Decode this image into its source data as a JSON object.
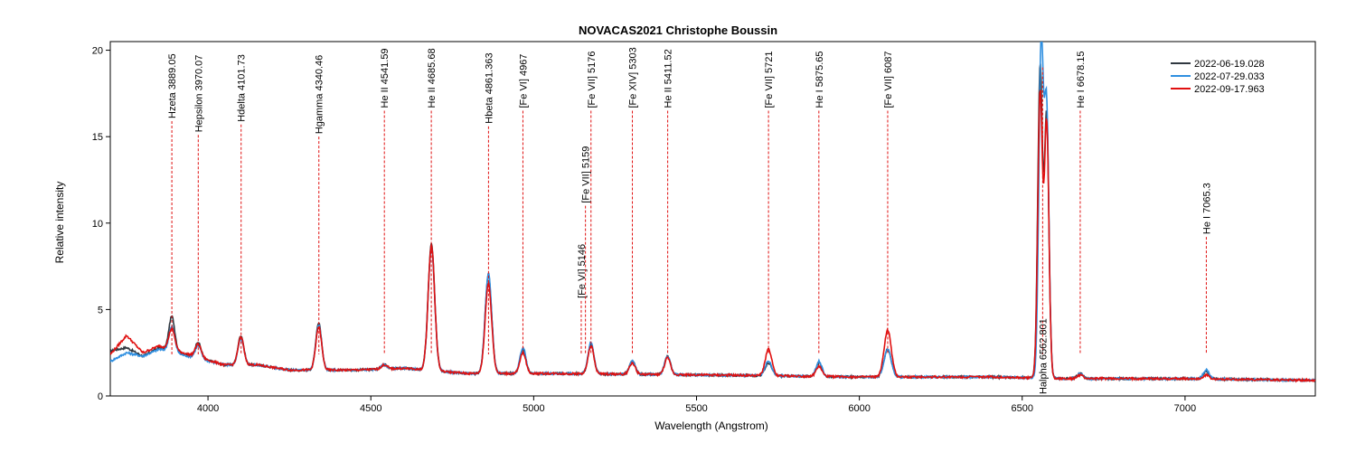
{
  "chart_data": {
    "type": "line",
    "title": "NOVACAS2021   Christophe Boussin",
    "xlabel": "Wavelength (Angstrom)",
    "ylabel": "Relative intensity",
    "xlim": [
      3700,
      7400
    ],
    "ylim": [
      0,
      20.5
    ],
    "x_ticks": [
      4000,
      4500,
      5000,
      5500,
      6000,
      6500,
      7000
    ],
    "y_ticks": [
      0,
      5,
      10,
      15,
      20
    ],
    "grid": false,
    "legend_position": "top-right",
    "series": [
      {
        "name": "2022-06-19.028",
        "color": "#303840",
        "peaks": {
          "3889": 4.6,
          "3970": 3.1,
          "4101": 3.5,
          "4340": 4.2,
          "4541": 1.8,
          "4686": 8.8,
          "4861": 7.0,
          "4967": 2.7,
          "5176": 3.0,
          "5303": 2.0,
          "5411": 2.3,
          "5721": 1.9,
          "5876": 1.9,
          "6087": 2.7,
          "6555": 19.0,
          "6575": 16.2,
          "6678": 1.3,
          "7065": 1.4
        },
        "base": {
          "3700": 2.6,
          "3750": 2.8,
          "3800": 2.3,
          "3850": 2.8,
          "4050": 1.8,
          "4150": 1.8,
          "4250": 1.5,
          "4450": 1.5,
          "4600": 1.6,
          "4800": 1.3,
          "5050": 1.3,
          "5600": 1.2,
          "6000": 1.1,
          "6400": 1.1,
          "6650": 1.0,
          "7000": 1.0,
          "7400": 0.9
        }
      },
      {
        "name": "2022-07-29.033",
        "color": "#2f8fe0",
        "peaks": {
          "3889": 4.0,
          "3970": 2.9,
          "4101": 3.3,
          "4340": 4.1,
          "4541": 1.8,
          "4686": 8.6,
          "4861": 7.1,
          "4967": 2.8,
          "5176": 3.1,
          "5303": 2.0,
          "5411": 2.3,
          "5721": 2.0,
          "5876": 2.0,
          "6087": 2.7,
          "6558": 20.1,
          "6575": 16.5,
          "6678": 1.3,
          "7065": 1.5
        },
        "base": {
          "3700": 2.0,
          "3750": 2.5,
          "3800": 2.3,
          "3850": 2.7,
          "4050": 1.8,
          "4150": 1.8,
          "4250": 1.5,
          "4450": 1.5,
          "4600": 1.6,
          "4800": 1.3,
          "5050": 1.3,
          "5600": 1.2,
          "6000": 1.1,
          "6400": 1.1,
          "6650": 1.0,
          "7000": 1.0,
          "7400": 0.9
        }
      },
      {
        "name": "2022-09-17.963",
        "color": "#e01010",
        "peaks": {
          "3889": 3.9,
          "3970": 3.0,
          "4101": 3.4,
          "4340": 4.0,
          "4541": 1.8,
          "4686": 8.7,
          "4861": 6.5,
          "4967": 2.5,
          "5176": 2.9,
          "5303": 1.9,
          "5411": 2.2,
          "5721": 2.7,
          "5876": 1.7,
          "6087": 3.8,
          "6555": 17.5,
          "6575": 15.8,
          "6678": 1.2,
          "7065": 1.2
        },
        "base": {
          "3700": 2.4,
          "3750": 3.5,
          "3800": 2.5,
          "3850": 2.9,
          "4050": 1.8,
          "4150": 1.8,
          "4250": 1.5,
          "4450": 1.5,
          "4600": 1.6,
          "4800": 1.3,
          "5050": 1.3,
          "5600": 1.2,
          "6000": 1.1,
          "6400": 1.1,
          "6650": 1.0,
          "7000": 1.0,
          "7400": 0.9
        }
      }
    ],
    "annotations": [
      {
        "label": "Hzeta 3889.05",
        "x": 3889.05,
        "top": 15.9,
        "text_at": "top"
      },
      {
        "label": "Hepsilon 3970.07",
        "x": 3970.07,
        "top": 15.1,
        "text_at": "top"
      },
      {
        "label": "Hdelta 4101.73",
        "x": 4101.73,
        "top": 15.7,
        "text_at": "top"
      },
      {
        "label": "Hgamma 4340.46",
        "x": 4340.46,
        "top": 15.0,
        "text_at": "top"
      },
      {
        "label": "He II 4541.59",
        "x": 4541.59,
        "top": 16.5,
        "text_at": "top"
      },
      {
        "label": "He II 4685.68",
        "x": 4685.68,
        "top": 16.5,
        "text_at": "top"
      },
      {
        "label": "Hbeta 4861.363",
        "x": 4861.363,
        "top": 15.6,
        "text_at": "top"
      },
      {
        "label": "[Fe VI] 4967",
        "x": 4967,
        "top": 16.5,
        "text_at": "top"
      },
      {
        "label": "[Fe VI] 5146",
        "x": 5146,
        "top": 5.5,
        "text_at": "top"
      },
      {
        "label": "[Fe VII] 5159",
        "x": 5159,
        "top": 11.0,
        "text_at": "top"
      },
      {
        "label": "[Fe VII] 5176",
        "x": 5176,
        "top": 16.5,
        "text_at": "top"
      },
      {
        "label": "[Fe XIV] 5303",
        "x": 5303,
        "top": 16.5,
        "text_at": "top"
      },
      {
        "label": "He II 5411.52",
        "x": 5411.52,
        "top": 16.5,
        "text_at": "top"
      },
      {
        "label": "[Fe VII] 5721",
        "x": 5721,
        "top": 16.5,
        "text_at": "top"
      },
      {
        "label": "He I 5875.65",
        "x": 5875.65,
        "top": 16.5,
        "text_at": "top"
      },
      {
        "label": "[Fe VII] 6087",
        "x": 6087,
        "top": 16.5,
        "text_at": "top"
      },
      {
        "label": "Halpha 6562.801",
        "x": 6562.801,
        "top": 19.0,
        "text_at": "bottom"
      },
      {
        "label": "He I 6678.15",
        "x": 6678.15,
        "top": 16.5,
        "text_at": "top"
      },
      {
        "label": "He I 7065.3",
        "x": 7065.3,
        "top": 9.2,
        "text_at": "top"
      }
    ]
  }
}
